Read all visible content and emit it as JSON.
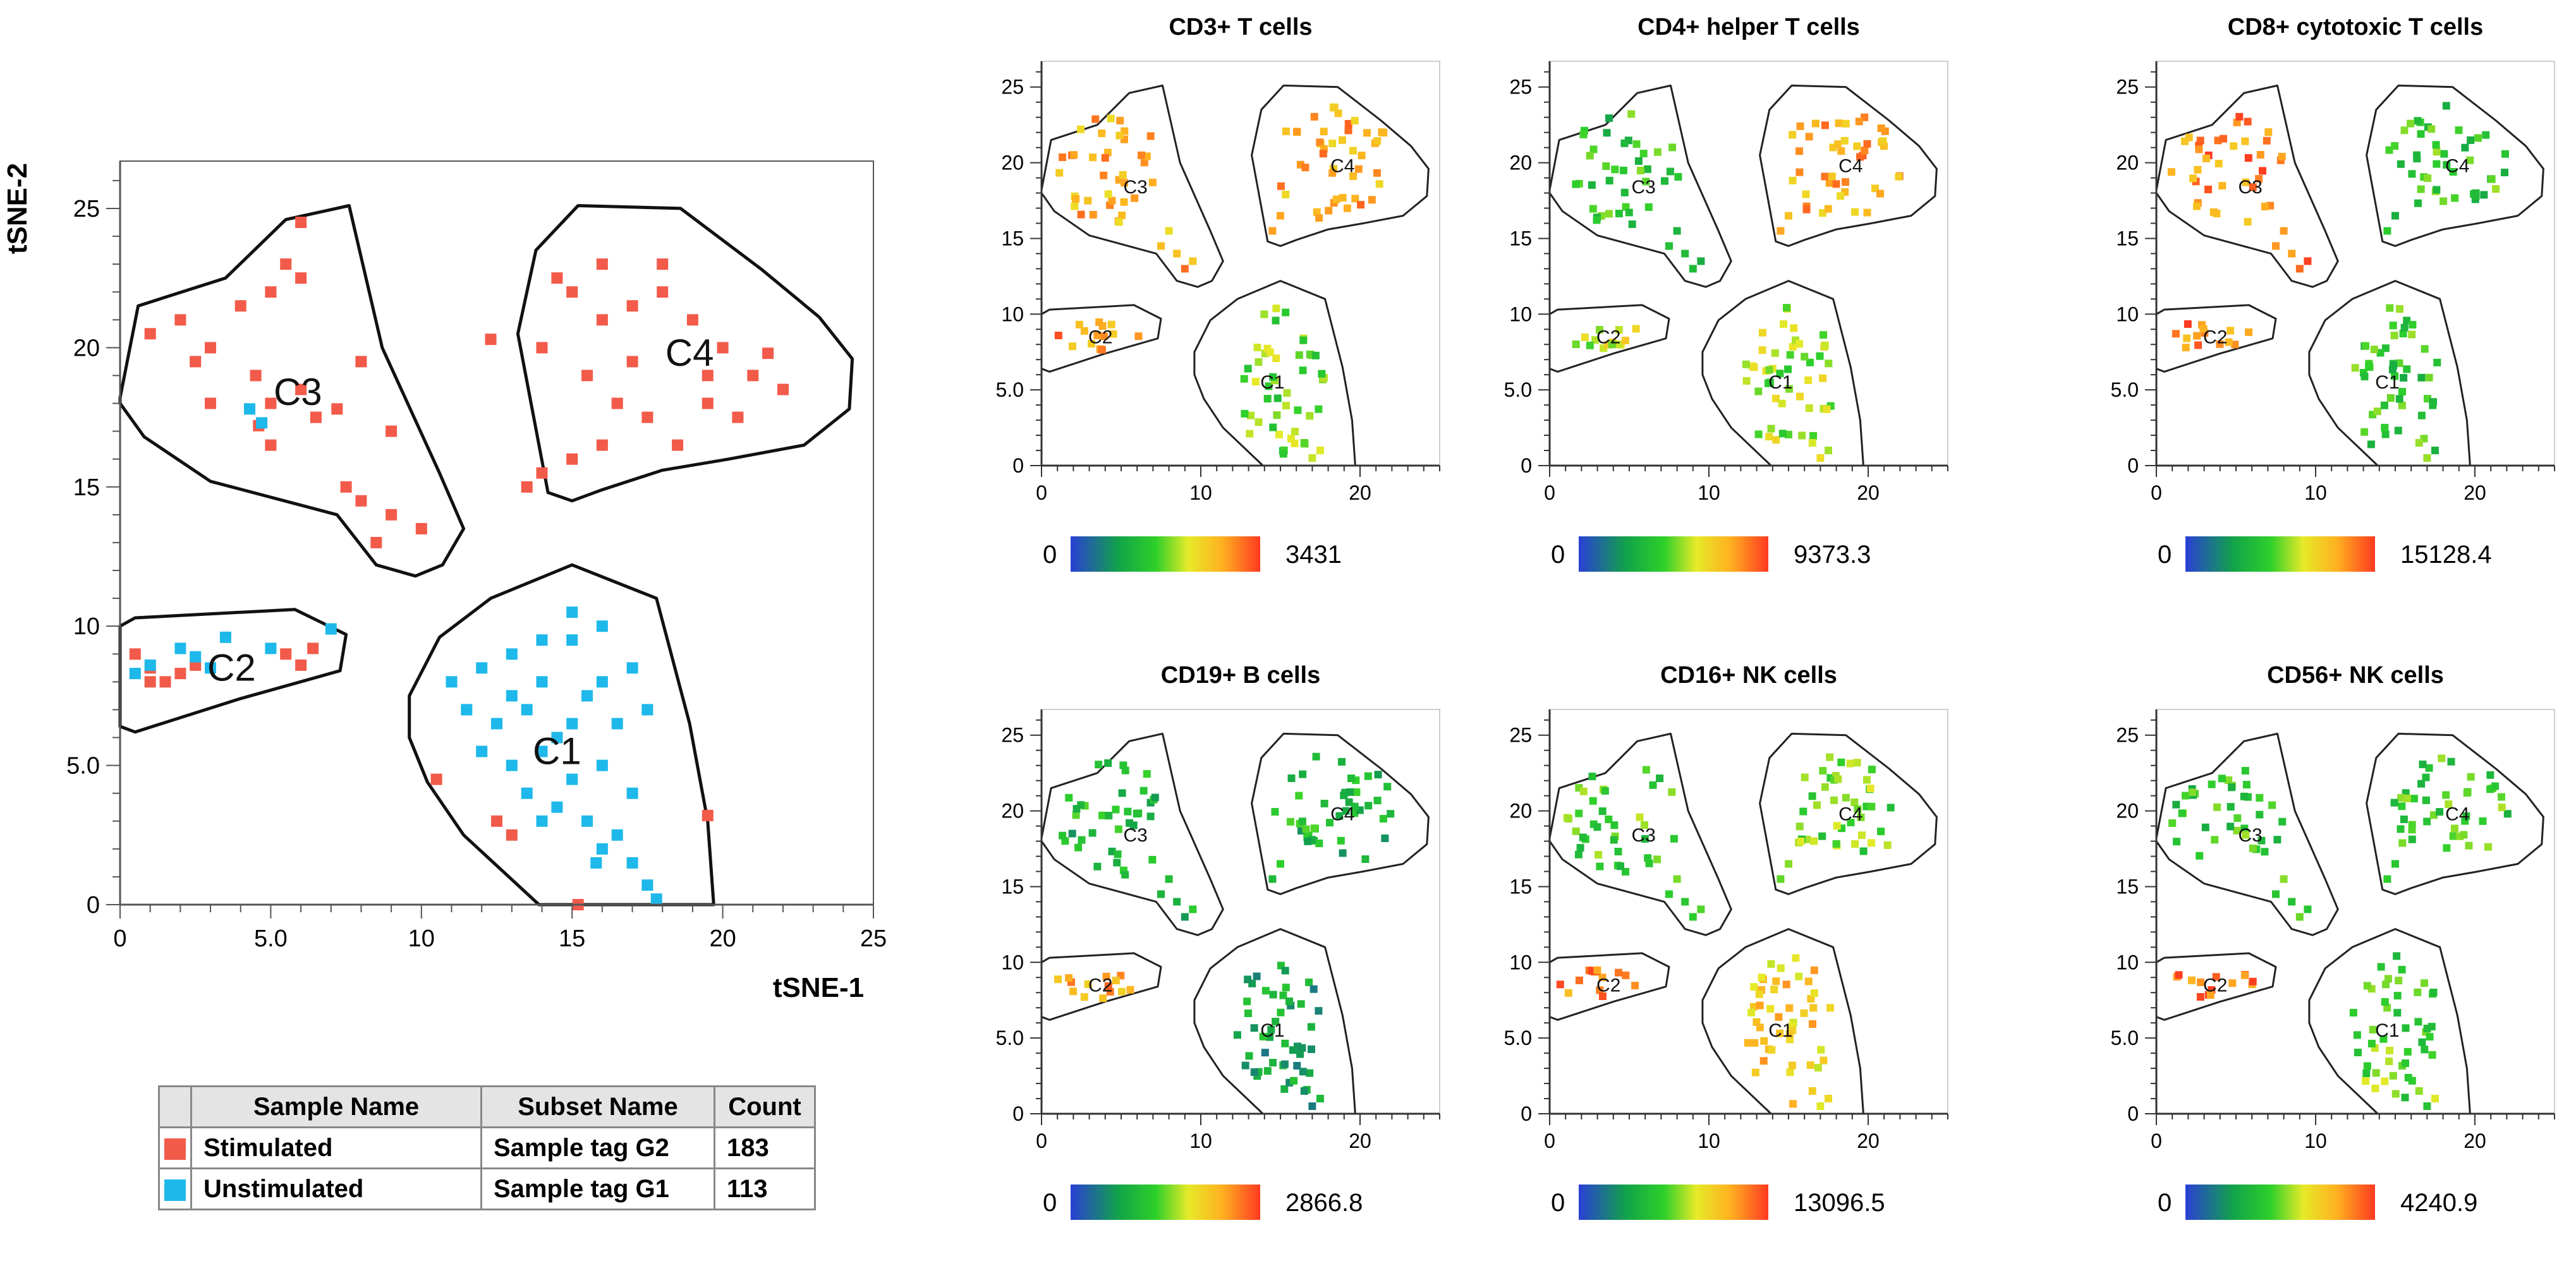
{
  "colors": {
    "stimulated": "#f25a4a",
    "unstimulated": "#1eb8ea",
    "cluster_outline": "#111111",
    "scale": [
      "#2a3fd6",
      "#1aa84a",
      "#22cc22",
      "#d8e020",
      "#ffd020",
      "#ff7a20",
      "#ff3a20"
    ]
  },
  "main_plot": {
    "xlabel": "tSNE-1",
    "ylabel": "tSNE-2",
    "x_ticks": [
      "0",
      "5.0",
      "10",
      "15",
      "20",
      "25"
    ],
    "y_ticks": [
      "0",
      "5.0",
      "10",
      "15",
      "20",
      "25"
    ],
    "cluster_labels": [
      "C1",
      "C2",
      "C3",
      "C4"
    ]
  },
  "legend_table": {
    "headers": [
      "",
      "Sample Name",
      "Subset Name",
      "Count"
    ],
    "rows": [
      {
        "color": "#f25a4a",
        "sample": "Stimulated",
        "subset": "Sample tag G2",
        "count": "183"
      },
      {
        "color": "#1eb8ea",
        "sample": "Unstimulated",
        "subset": "Sample tag G1",
        "count": "113"
      }
    ]
  },
  "panels": [
    {
      "title": "CD3+ T cells",
      "scale_min": "0",
      "scale_max": "3431"
    },
    {
      "title": "CD4+ helper T cells",
      "scale_min": "0",
      "scale_max": "9373.3"
    },
    {
      "title": "CD8+ cytotoxic T cells",
      "scale_min": "0",
      "scale_max": "15128.4"
    },
    {
      "title": "CD19+  B cells",
      "scale_min": "0",
      "scale_max": "2866.8"
    },
    {
      "title": "CD16+ NK cells",
      "scale_min": "0",
      "scale_max": "13096.5"
    },
    {
      "title": "CD56+ NK cells",
      "scale_min": "0",
      "scale_max": "4240.9"
    }
  ],
  "panel_axes": {
    "x_ticks": [
      "0",
      "10",
      "20"
    ],
    "y_ticks": [
      "0",
      "5.0",
      "10",
      "15",
      "20",
      "25"
    ],
    "cluster_labels": [
      "C1",
      "C2",
      "C3",
      "C4"
    ]
  },
  "chart_data": [
    {
      "type": "scatter",
      "title": "",
      "xlabel": "tSNE-1",
      "ylabel": "tSNE-2",
      "xlim": [
        0,
        25
      ],
      "ylim": [
        0,
        26
      ],
      "series": [
        {
          "name": "Stimulated",
          "color": "#f25a4a",
          "count": 183,
          "points": [
            [
              1,
              20.5
            ],
            [
              2,
              21
            ],
            [
              3,
              20
            ],
            [
              4,
              21.5
            ],
            [
              5,
              22
            ],
            [
              5.5,
              23
            ],
            [
              6,
              22.5
            ],
            [
              6,
              24.5
            ],
            [
              4.5,
              19
            ],
            [
              3,
              18
            ],
            [
              2.5,
              19.5
            ],
            [
              5,
              18
            ],
            [
              6,
              18.5
            ],
            [
              6.5,
              17.5
            ],
            [
              7.2,
              17.8
            ],
            [
              5,
              16.5
            ],
            [
              4.6,
              17.2
            ],
            [
              8,
              19.5
            ],
            [
              9,
              17
            ],
            [
              7.5,
              15
            ],
            [
              8,
              14.5
            ],
            [
              9,
              14
            ],
            [
              10,
              13.5
            ],
            [
              8.5,
              13
            ],
            [
              12.3,
              20.3
            ],
            [
              14,
              20
            ],
            [
              15,
              22
            ],
            [
              16,
              23
            ],
            [
              17,
              21.5
            ],
            [
              18,
              22
            ],
            [
              19,
              21
            ],
            [
              20,
              20
            ],
            [
              21,
              19
            ],
            [
              22,
              18.5
            ],
            [
              15.5,
              19
            ],
            [
              16.5,
              18
            ],
            [
              17.5,
              17.5
            ],
            [
              18.5,
              16.5
            ],
            [
              15,
              16
            ],
            [
              14,
              15.5
            ],
            [
              13.5,
              15
            ],
            [
              16,
              21
            ],
            [
              17,
              19.5
            ],
            [
              19.5,
              18
            ],
            [
              20.5,
              17.5
            ],
            [
              14.5,
              22.5
            ],
            [
              18,
              23
            ],
            [
              19.5,
              19
            ],
            [
              21.5,
              19.8
            ],
            [
              16,
              16.5
            ],
            [
              0.5,
              9
            ],
            [
              1,
              8.5
            ],
            [
              1.5,
              8
            ],
            [
              2,
              8.3
            ],
            [
              2.5,
              8.6
            ],
            [
              1,
              8
            ],
            [
              5.5,
              9
            ],
            [
              6,
              8.6
            ],
            [
              6.4,
              9.2
            ],
            [
              10.5,
              4.5
            ],
            [
              12.5,
              3
            ],
            [
              13,
              2.5
            ],
            [
              19.5,
              3.2
            ],
            [
              15.2,
              0
            ]
          ]
        },
        {
          "name": "Unstimulated",
          "color": "#1eb8ea",
          "count": 113,
          "points": [
            [
              4.3,
              17.8
            ],
            [
              4.7,
              17.3
            ],
            [
              0.5,
              8.3
            ],
            [
              1,
              8.6
            ],
            [
              2,
              9.2
            ],
            [
              2.5,
              8.9
            ],
            [
              3,
              8.5
            ],
            [
              3.5,
              9.6
            ],
            [
              5,
              9.2
            ],
            [
              7,
              9.9
            ],
            [
              11,
              8
            ],
            [
              12,
              8.5
            ],
            [
              13,
              9
            ],
            [
              14,
              8
            ],
            [
              15,
              9.5
            ],
            [
              16,
              10
            ],
            [
              17,
              8.5
            ],
            [
              11.5,
              7
            ],
            [
              12.5,
              6.5
            ],
            [
              13.5,
              7
            ],
            [
              14.5,
              6
            ],
            [
              15.5,
              7.5
            ],
            [
              16.5,
              6.5
            ],
            [
              17.5,
              7
            ],
            [
              12,
              5.5
            ],
            [
              13,
              5
            ],
            [
              14,
              5.5
            ],
            [
              15,
              4.5
            ],
            [
              16,
              5
            ],
            [
              17,
              4
            ],
            [
              13.5,
              4
            ],
            [
              14.5,
              3.5
            ],
            [
              15.5,
              3
            ],
            [
              16.5,
              2.5
            ],
            [
              17,
              1.5
            ],
            [
              17.5,
              0.7
            ],
            [
              16,
              2
            ],
            [
              15,
              10.5
            ],
            [
              14,
              9.5
            ],
            [
              13,
              7.5
            ],
            [
              16,
              8
            ],
            [
              15,
              6.5
            ],
            [
              14,
              3
            ],
            [
              15.8,
              1.5
            ],
            [
              17.8,
              0.2
            ]
          ]
        }
      ]
    },
    {
      "type": "scatter",
      "title": "CD3+ T cells",
      "xlim": [
        0,
        25
      ],
      "ylim": [
        0,
        26
      ],
      "color_scale": [
        0,
        3431
      ]
    },
    {
      "type": "scatter",
      "title": "CD4+ helper T cells",
      "xlim": [
        0,
        25
      ],
      "ylim": [
        0,
        26
      ],
      "color_scale": [
        0,
        9373.3
      ]
    },
    {
      "type": "scatter",
      "title": "CD8+ cytotoxic T cells",
      "xlim": [
        0,
        25
      ],
      "ylim": [
        0,
        26
      ],
      "color_scale": [
        0,
        15128.4
      ]
    },
    {
      "type": "scatter",
      "title": "CD19+  B cells",
      "xlim": [
        0,
        25
      ],
      "ylim": [
        0,
        26
      ],
      "color_scale": [
        0,
        2866.8
      ]
    },
    {
      "type": "scatter",
      "title": "CD16+ NK cells",
      "xlim": [
        0,
        25
      ],
      "ylim": [
        0,
        26
      ],
      "color_scale": [
        0,
        13096.5
      ]
    },
    {
      "type": "scatter",
      "title": "CD56+ NK cells",
      "xlim": [
        0,
        25
      ],
      "ylim": [
        0,
        26
      ],
      "color_scale": [
        0,
        4240.9
      ]
    }
  ]
}
